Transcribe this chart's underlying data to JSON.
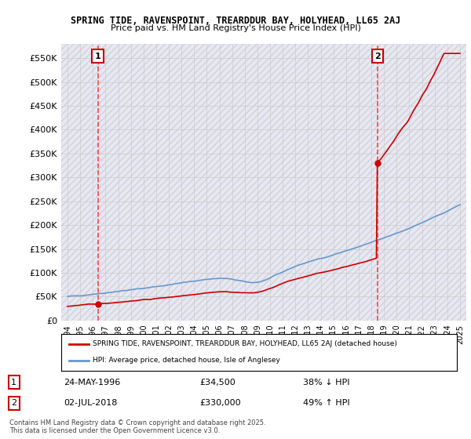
{
  "title1": "SPRING TIDE, RAVENSPOINT, TREARDDUR BAY, HOLYHEAD, LL65 2AJ",
  "title2": "Price paid vs. HM Land Registry's House Price Index (HPI)",
  "ylim": [
    0,
    580000
  ],
  "yticks": [
    0,
    50000,
    100000,
    150000,
    200000,
    250000,
    300000,
    350000,
    400000,
    450000,
    500000,
    550000
  ],
  "ytick_labels": [
    "£0",
    "£50K",
    "£100K",
    "£150K",
    "£200K",
    "£250K",
    "£300K",
    "£350K",
    "£400K",
    "£450K",
    "£500K",
    "£550K"
  ],
  "xlim_start": 1993.5,
  "xlim_end": 2025.5,
  "xticks": [
    1994,
    1995,
    1996,
    1997,
    1998,
    1999,
    2000,
    2001,
    2002,
    2003,
    2004,
    2005,
    2006,
    2007,
    2008,
    2009,
    2010,
    2011,
    2012,
    2013,
    2014,
    2015,
    2016,
    2017,
    2018,
    2019,
    2020,
    2021,
    2022,
    2023,
    2024,
    2025
  ],
  "sale1_x": 1996.39,
  "sale1_y": 34500,
  "sale1_label": "1",
  "sale2_x": 2018.5,
  "sale2_y": 330000,
  "sale2_label": "2",
  "vline1_x": 1996.39,
  "vline2_x": 2018.5,
  "hpi_color": "#6699cc",
  "price_color": "#cc0000",
  "vline_color": "#ff4444",
  "background_hatch_color": "#e8e8f0",
  "grid_color": "#cccccc",
  "legend_entry1": "SPRING TIDE, RAVENSPOINT, TREARDDUR BAY, HOLYHEAD, LL65 2AJ (detached house)",
  "legend_entry2": "HPI: Average price, detached house, Isle of Anglesey",
  "note1_num": "1",
  "note1_date": "24-MAY-1996",
  "note1_price": "£34,500",
  "note1_hpi": "38% ↓ HPI",
  "note2_num": "2",
  "note2_date": "02-JUL-2018",
  "note2_price": "£330,000",
  "note2_hpi": "49% ↑ HPI",
  "copyright": "Contains HM Land Registry data © Crown copyright and database right 2025.\nThis data is licensed under the Open Government Licence v3.0."
}
